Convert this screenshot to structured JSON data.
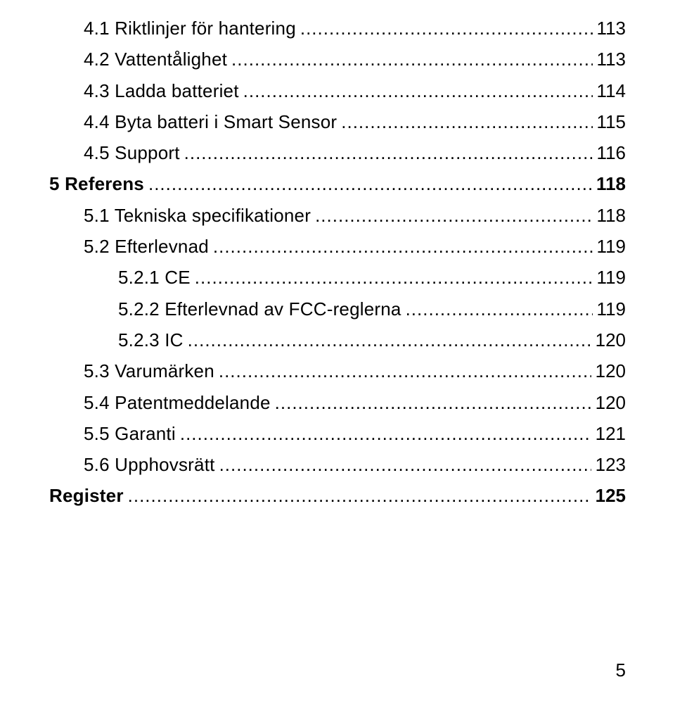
{
  "toc": [
    {
      "indent": 1,
      "bold": false,
      "label": "4.1 Riktlinjer för hantering",
      "page": "113"
    },
    {
      "indent": 1,
      "bold": false,
      "label": "4.2 Vattentålighet",
      "page": "113"
    },
    {
      "indent": 1,
      "bold": false,
      "label": "4.3 Ladda batteriet",
      "page": "114"
    },
    {
      "indent": 1,
      "bold": false,
      "label": "4.4 Byta batteri i Smart Sensor",
      "page": "115"
    },
    {
      "indent": 1,
      "bold": false,
      "label": "4.5 Support",
      "page": "116"
    },
    {
      "indent": 0,
      "bold": true,
      "label": "5 Referens",
      "page": "118"
    },
    {
      "indent": 1,
      "bold": false,
      "label": "5.1 Tekniska specifikationer",
      "page": "118"
    },
    {
      "indent": 1,
      "bold": false,
      "label": "5.2 Efterlevnad",
      "page": "119"
    },
    {
      "indent": 2,
      "bold": false,
      "label": "5.2.1 CE",
      "page": "119"
    },
    {
      "indent": 2,
      "bold": false,
      "label": "5.2.2 Efterlevnad av FCC-reglerna",
      "page": "119"
    },
    {
      "indent": 2,
      "bold": false,
      "label": "5.2.3 IC",
      "page": "120"
    },
    {
      "indent": 1,
      "bold": false,
      "label": "5.3 Varumärken",
      "page": "120"
    },
    {
      "indent": 1,
      "bold": false,
      "label": "5.4 Patentmeddelande",
      "page": "120"
    },
    {
      "indent": 1,
      "bold": false,
      "label": "5.5 Garanti",
      "page": "121"
    },
    {
      "indent": 1,
      "bold": false,
      "label": "5.6 Upphovsrätt",
      "page": "123"
    },
    {
      "indent": 0,
      "bold": true,
      "label": "Register",
      "page": "125"
    }
  ],
  "footer_page": "5"
}
